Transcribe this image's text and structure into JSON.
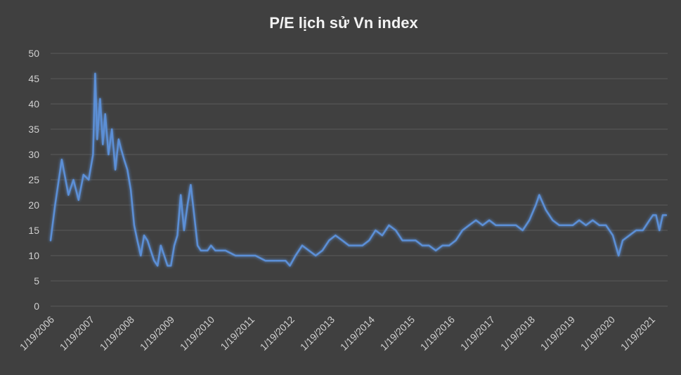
{
  "chart_data": {
    "type": "line",
    "title": "P/E lịch sử Vn index",
    "xlabel": "",
    "ylabel": "",
    "ylim": [
      0,
      50
    ],
    "yticks": [
      "0",
      "5",
      "10",
      "15",
      "20",
      "25",
      "30",
      "35",
      "40",
      "45",
      "50"
    ],
    "xticks": [
      "1/19/2006",
      "1/19/2007",
      "1/19/2008",
      "1/19/2009",
      "1/19/2010",
      "1/19/2011",
      "1/19/2012",
      "1/19/2013",
      "1/19/2014",
      "1/19/2015",
      "1/19/2016",
      "1/19/2017",
      "1/19/2018",
      "1/19/2019",
      "1/19/2020",
      "1/19/2021"
    ],
    "grid": true,
    "legend": "none",
    "line_color": "#5b8fd6",
    "series": [
      {
        "x": [
          "2006-01-19",
          "2006-03-01",
          "2006-05-01",
          "2006-07-01",
          "2006-08-15",
          "2006-10-01",
          "2006-11-15",
          "2007-01-01",
          "2007-02-10",
          "2007-03-01",
          "2007-03-20",
          "2007-04-15",
          "2007-05-10",
          "2007-06-01",
          "2007-07-01",
          "2007-08-01",
          "2007-09-01",
          "2007-10-01",
          "2007-10-25",
          "2007-11-20",
          "2007-12-20",
          "2008-01-20",
          "2008-02-20",
          "2008-03-20",
          "2008-04-20",
          "2008-05-20",
          "2008-06-20",
          "2008-07-20",
          "2008-08-20",
          "2008-09-20",
          "2008-10-20",
          "2008-11-20",
          "2008-12-20",
          "2009-01-20",
          "2009-02-20",
          "2009-03-20",
          "2009-04-20",
          "2009-05-20",
          "2009-06-20",
          "2009-07-20",
          "2009-08-20",
          "2009-09-20",
          "2009-10-20",
          "2009-11-20",
          "2009-12-20",
          "2010-01-20",
          "2010-03-01",
          "2010-06-01",
          "2010-09-01",
          "2010-12-01",
          "2011-03-01",
          "2011-06-01",
          "2011-09-01",
          "2011-12-01",
          "2012-01-10",
          "2012-03-01",
          "2012-05-01",
          "2012-07-01",
          "2012-09-01",
          "2012-11-01",
          "2013-01-01",
          "2013-03-01",
          "2013-05-01",
          "2013-07-01",
          "2013-09-01",
          "2013-11-01",
          "2014-01-01",
          "2014-03-01",
          "2014-05-01",
          "2014-07-01",
          "2014-09-01",
          "2014-11-01",
          "2015-01-01",
          "2015-03-01",
          "2015-05-01",
          "2015-07-01",
          "2015-09-01",
          "2015-11-01",
          "2016-01-01",
          "2016-03-01",
          "2016-05-01",
          "2016-07-01",
          "2016-09-01",
          "2016-11-01",
          "2017-01-01",
          "2017-03-01",
          "2017-05-01",
          "2017-07-01",
          "2017-09-01",
          "2017-11-01",
          "2018-01-01",
          "2018-03-01",
          "2018-04-01",
          "2018-06-01",
          "2018-08-01",
          "2018-10-01",
          "2018-12-01",
          "2019-02-01",
          "2019-04-01",
          "2019-06-01",
          "2019-08-01",
          "2019-10-01",
          "2019-12-01",
          "2020-02-01",
          "2020-03-25",
          "2020-05-01",
          "2020-07-01",
          "2020-09-01",
          "2020-11-01",
          "2021-01-01",
          "2021-02-01",
          "2021-03-01",
          "2021-04-01",
          "2021-05-01",
          "2021-06-01"
        ],
        "y": [
          13,
          20,
          29,
          22,
          25,
          21,
          26,
          25,
          30,
          46,
          33,
          41,
          32,
          38,
          30,
          35,
          27,
          33,
          31,
          29,
          27,
          23,
          16,
          13,
          10,
          14,
          13,
          11,
          9,
          8,
          12,
          10,
          8,
          8,
          12,
          14,
          22,
          15,
          20,
          24,
          18,
          12,
          11,
          11,
          11,
          12,
          11,
          11,
          10,
          10,
          10,
          9,
          9,
          9,
          8,
          10,
          12,
          11,
          10,
          11,
          13,
          14,
          13,
          12,
          12,
          12,
          13,
          15,
          14,
          16,
          15,
          13,
          13,
          13,
          12,
          12,
          11,
          12,
          12,
          13,
          15,
          16,
          17,
          16,
          17,
          16,
          16,
          16,
          16,
          15,
          17,
          20,
          22,
          19,
          17,
          16,
          16,
          16,
          17,
          16,
          17,
          16,
          16,
          14,
          10,
          13,
          14,
          15,
          15,
          17,
          18,
          18,
          15,
          18,
          18
        ]
      }
    ]
  }
}
